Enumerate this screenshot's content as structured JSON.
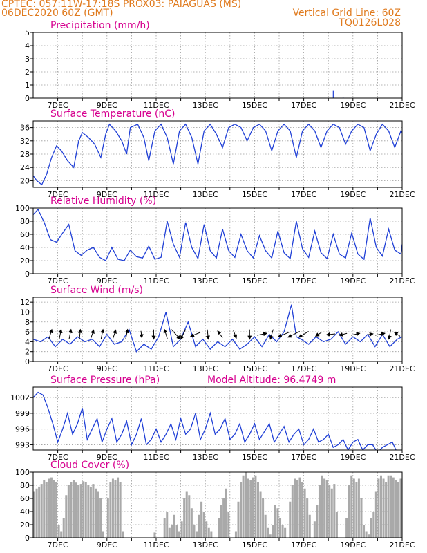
{
  "header": {
    "line1_left": "CPTEC:   057:11W-17:18S   PROX03: PAIAGUAS (MS)",
    "line2_left": "06DEC2020 60Z (GMT)",
    "line2_right": "Vertical Grid Line: 60Z",
    "line3_right": "TQ0126L028"
  },
  "x_ticks": [
    "7DEC",
    "9DEC",
    "11DEC",
    "13DEC",
    "15DEC",
    "17DEC",
    "19DEC",
    "21DEC"
  ],
  "colors": {
    "header": "#e07b1f",
    "title": "#d6008f",
    "line": "#1f3fd6",
    "bar": "#a9a9a9"
  },
  "chart_data": [
    {
      "type": "bar",
      "title": "Precipitation (mm/h)",
      "ylim": [
        0,
        5
      ],
      "yticks": [
        0,
        1,
        2,
        3,
        4,
        5
      ],
      "x_range": [
        6.0,
        21.0
      ],
      "x": [
        18.2,
        18.6
      ],
      "values": [
        0.6,
        0.1
      ]
    },
    {
      "type": "line",
      "title": "Surface Temperature (nC)",
      "ylim": [
        18,
        38
      ],
      "yticks": [
        20,
        24,
        28,
        32,
        36
      ],
      "x_range": [
        6.0,
        21.0
      ],
      "x": [
        6.0,
        6.15,
        6.35,
        6.55,
        6.75,
        6.95,
        7.15,
        7.4,
        7.65,
        7.85,
        8.0,
        8.25,
        8.5,
        8.75,
        8.95,
        9.1,
        9.35,
        9.6,
        9.8,
        9.95,
        10.25,
        10.5,
        10.7,
        10.95,
        11.2,
        11.45,
        11.7,
        11.95,
        12.2,
        12.45,
        12.7,
        12.95,
        13.2,
        13.45,
        13.7,
        13.95,
        14.2,
        14.45,
        14.7,
        14.95,
        15.2,
        15.45,
        15.7,
        15.95,
        16.2,
        16.45,
        16.7,
        16.95,
        17.2,
        17.45,
        17.7,
        17.95,
        18.2,
        18.45,
        18.7,
        18.95,
        19.2,
        19.45,
        19.7,
        19.95,
        20.2,
        20.45,
        20.7,
        20.95,
        21.0
      ],
      "values": [
        21.5,
        20,
        18.8,
        22,
        27,
        30.5,
        29,
        26,
        24,
        32,
        34.5,
        33,
        31,
        27,
        34,
        37,
        35,
        32,
        28,
        36,
        37,
        33,
        26,
        35,
        37,
        33,
        25,
        35,
        37,
        33,
        25,
        35,
        37,
        34,
        30,
        36,
        37,
        36,
        32,
        36,
        37,
        35,
        29,
        35,
        37,
        35,
        27,
        35,
        37,
        35,
        30,
        35,
        37,
        36,
        31,
        35,
        37,
        36,
        29,
        34,
        37,
        35,
        30,
        35,
        34.5
      ]
    },
    {
      "type": "line",
      "title": "Relative Humidity (%)",
      "ylim": [
        0,
        100
      ],
      "yticks": [
        0,
        20,
        40,
        60,
        80,
        100
      ],
      "x_range": [
        6.0,
        21.0
      ],
      "x": [
        6.0,
        6.2,
        6.45,
        6.7,
        6.95,
        7.2,
        7.45,
        7.7,
        7.95,
        8.2,
        8.45,
        8.7,
        8.95,
        9.2,
        9.45,
        9.7,
        9.95,
        10.2,
        10.45,
        10.7,
        10.95,
        11.2,
        11.45,
        11.7,
        11.95,
        12.2,
        12.45,
        12.7,
        12.95,
        13.2,
        13.45,
        13.7,
        13.95,
        14.2,
        14.45,
        14.7,
        14.95,
        15.2,
        15.45,
        15.7,
        15.95,
        16.2,
        16.45,
        16.7,
        16.95,
        17.2,
        17.45,
        17.7,
        17.95,
        18.2,
        18.45,
        18.7,
        18.95,
        19.2,
        19.45,
        19.7,
        19.95,
        20.2,
        20.45,
        20.7,
        20.95,
        21.0
      ],
      "values": [
        90,
        98,
        78,
        52,
        48,
        62,
        75,
        35,
        28,
        36,
        40,
        25,
        20,
        40,
        22,
        20,
        36,
        26,
        24,
        42,
        22,
        25,
        80,
        45,
        25,
        78,
        40,
        23,
        75,
        35,
        24,
        68,
        35,
        25,
        60,
        35,
        24,
        58,
        35,
        24,
        65,
        32,
        23,
        80,
        38,
        25,
        65,
        32,
        23,
        60,
        30,
        24,
        62,
        30,
        22,
        85,
        40,
        27,
        68,
        36,
        30,
        45
      ]
    },
    {
      "type": "line",
      "title": "Surface Wind (m/s)",
      "ylim": [
        0,
        13
      ],
      "yticks": [
        0,
        2,
        4,
        6,
        8,
        10,
        12
      ],
      "x_range": [
        6.0,
        21.0
      ],
      "x": [
        6.0,
        6.3,
        6.6,
        6.9,
        7.2,
        7.5,
        7.8,
        8.1,
        8.4,
        8.7,
        9.0,
        9.3,
        9.6,
        9.9,
        10.2,
        10.5,
        10.8,
        11.1,
        11.4,
        11.7,
        12.0,
        12.3,
        12.6,
        12.9,
        13.2,
        13.5,
        13.8,
        14.1,
        14.4,
        14.7,
        15.0,
        15.3,
        15.6,
        15.9,
        16.2,
        16.5,
        16.7,
        16.9,
        17.2,
        17.5,
        17.8,
        18.1,
        18.4,
        18.7,
        19.0,
        19.3,
        19.6,
        19.9,
        20.2,
        20.5,
        20.8,
        21.0
      ],
      "values": [
        4.5,
        4,
        5,
        3,
        4.5,
        3.5,
        5,
        4,
        4.5,
        3,
        5.5,
        3.5,
        4,
        6.5,
        2,
        3.5,
        2.5,
        5,
        10,
        3,
        4.5,
        8,
        3,
        4.5,
        2.5,
        4,
        3,
        4.5,
        2.5,
        3.5,
        5,
        3,
        5.5,
        4,
        6,
        11.5,
        5,
        4.5,
        3.5,
        5,
        4,
        4.5,
        6,
        3.5,
        5,
        4,
        5.5,
        3,
        5.5,
        3,
        4.5,
        5
      ],
      "arrows": [
        {
          "x": 6.7,
          "u": 0.3,
          "v": 1.0
        },
        {
          "x": 7.1,
          "u": 0.2,
          "v": 1.0
        },
        {
          "x": 7.5,
          "u": 0.2,
          "v": 1.0
        },
        {
          "x": 7.9,
          "u": 0.1,
          "v": 1.0
        },
        {
          "x": 8.4,
          "u": 0.3,
          "v": 0.9
        },
        {
          "x": 8.8,
          "u": 0.2,
          "v": 1.0
        },
        {
          "x": 9.3,
          "u": 0.3,
          "v": 0.9
        },
        {
          "x": 9.8,
          "u": 0.2,
          "v": 1.0
        },
        {
          "x": 10.4,
          "u": 0.1,
          "v": -0.7
        },
        {
          "x": 10.9,
          "u": 0.0,
          "v": -1.0
        },
        {
          "x": 11.4,
          "u": -0.3,
          "v": 1.0
        },
        {
          "x": 11.8,
          "u": 0.9,
          "v": -1.0
        },
        {
          "x": 12.1,
          "u": -0.5,
          "v": -1.0
        },
        {
          "x": 12.6,
          "u": -1.0,
          "v": -0.4
        },
        {
          "x": 13.1,
          "u": 0.1,
          "v": -1.0
        },
        {
          "x": 13.6,
          "u": -0.5,
          "v": 0.7
        },
        {
          "x": 14.2,
          "u": 0.3,
          "v": -0.8
        },
        {
          "x": 14.8,
          "u": 0.0,
          "v": -1.0
        },
        {
          "x": 15.3,
          "u": 1.0,
          "v": 0.2
        },
        {
          "x": 15.7,
          "u": -0.3,
          "v": -1.0
        },
        {
          "x": 16.2,
          "u": -1.2,
          "v": -0.5
        },
        {
          "x": 16.6,
          "u": -1.2,
          "v": -0.6
        },
        {
          "x": 17.0,
          "u": -1.0,
          "v": -0.6
        },
        {
          "x": 17.6,
          "u": -0.6,
          "v": -0.4
        },
        {
          "x": 18.1,
          "u": -0.9,
          "v": -0.1
        },
        {
          "x": 18.6,
          "u": -0.8,
          "v": -0.2
        },
        {
          "x": 19.1,
          "u": 0.9,
          "v": 0.2
        },
        {
          "x": 19.7,
          "u": 0.6,
          "v": 0.1
        },
        {
          "x": 20.1,
          "u": 1.0,
          "v": 0.2
        },
        {
          "x": 20.5,
          "u": -0.2,
          "v": -1.0
        },
        {
          "x": 20.8,
          "u": -0.6,
          "v": 0.4
        }
      ]
    },
    {
      "type": "line",
      "title": "Surface Pressure (hPa)",
      "annotation": "Model Altitude: 96.4749 m",
      "ylim": [
        992,
        1004
      ],
      "yticks": [
        993,
        996,
        999,
        1002
      ],
      "x_range": [
        6.0,
        21.0
      ],
      "x": [
        6.0,
        6.2,
        6.4,
        6.6,
        6.8,
        7.0,
        7.2,
        7.4,
        7.6,
        7.8,
        8.0,
        8.2,
        8.4,
        8.6,
        8.8,
        9.0,
        9.2,
        9.4,
        9.6,
        9.8,
        10.0,
        10.2,
        10.4,
        10.6,
        10.8,
        11.0,
        11.2,
        11.4,
        11.6,
        11.8,
        12.0,
        12.2,
        12.4,
        12.6,
        12.8,
        13.0,
        13.2,
        13.4,
        13.6,
        13.8,
        14.0,
        14.2,
        14.4,
        14.6,
        14.8,
        15.0,
        15.2,
        15.4,
        15.6,
        15.8,
        16.0,
        16.2,
        16.4,
        16.6,
        16.8,
        17.0,
        17.2,
        17.4,
        17.6,
        17.8,
        18.0,
        18.2,
        18.4,
        18.6,
        18.8,
        19.0,
        19.2,
        19.4,
        19.6,
        19.8,
        20.0,
        20.2,
        20.4,
        20.6,
        20.8,
        21.0
      ],
      "values": [
        1002,
        1003,
        1002.5,
        1000,
        997,
        993.5,
        996,
        999,
        995,
        997,
        1000,
        994,
        996,
        998,
        993.5,
        996,
        998,
        993.5,
        995,
        997.5,
        993,
        995,
        998,
        993,
        994,
        996,
        993.5,
        995,
        997,
        994,
        998,
        995,
        996,
        999,
        994,
        996,
        999,
        995,
        996,
        998,
        994,
        995,
        997,
        993.5,
        995,
        997,
        994,
        995.5,
        997,
        993.5,
        995,
        996.5,
        993.5,
        995,
        996,
        993,
        994,
        996,
        993.5,
        994,
        995,
        992.5,
        993,
        994,
        992,
        993.5,
        994,
        992,
        993,
        993,
        991.5,
        992.5,
        993,
        993.5,
        991.5,
        991.5
      ]
    },
    {
      "type": "bar",
      "title": "Cloud Cover (%)",
      "ylim": [
        0,
        100
      ],
      "yticks": [
        0,
        20,
        40,
        60,
        80,
        100
      ],
      "x_range": [
        6.0,
        21.0
      ],
      "color": "#a9a9a9",
      "x": [
        6.0,
        6.1,
        6.2,
        6.3,
        6.4,
        6.5,
        6.6,
        6.7,
        6.8,
        6.9,
        7.0,
        7.1,
        7.2,
        7.3,
        7.4,
        7.5,
        7.6,
        7.7,
        7.8,
        7.9,
        8.0,
        8.1,
        8.2,
        8.3,
        8.4,
        8.5,
        8.6,
        8.7,
        8.8,
        8.9,
        9.0,
        9.1,
        9.2,
        9.3,
        9.4,
        9.5,
        9.6,
        9.7,
        9.8,
        9.9,
        10.0,
        10.1,
        10.2,
        10.3,
        10.4,
        10.5,
        10.6,
        10.7,
        10.8,
        10.9,
        11.0,
        11.1,
        11.2,
        11.3,
        11.4,
        11.5,
        11.6,
        11.7,
        11.8,
        11.9,
        12.0,
        12.1,
        12.2,
        12.3,
        12.4,
        12.5,
        12.6,
        12.7,
        12.8,
        12.9,
        13.0,
        13.1,
        13.2,
        13.3,
        13.4,
        13.5,
        13.6,
        13.7,
        13.8,
        13.9,
        14.0,
        14.1,
        14.2,
        14.3,
        14.4,
        14.5,
        14.6,
        14.7,
        14.8,
        14.9,
        15.0,
        15.1,
        15.2,
        15.3,
        15.4,
        15.5,
        15.6,
        15.7,
        15.8,
        15.9,
        16.0,
        16.1,
        16.2,
        16.3,
        16.4,
        16.5,
        16.6,
        16.7,
        16.8,
        16.9,
        17.0,
        17.1,
        17.2,
        17.3,
        17.4,
        17.5,
        17.6,
        17.7,
        17.8,
        17.9,
        18.0,
        18.1,
        18.2,
        18.3,
        18.4,
        18.5,
        18.6,
        18.7,
        18.8,
        18.9,
        19.0,
        19.1,
        19.2,
        19.3,
        19.4,
        19.5,
        19.6,
        19.7,
        19.8,
        19.9,
        20.0,
        20.1,
        20.2,
        20.3,
        20.4,
        20.5,
        20.6,
        20.7,
        20.8,
        20.9
      ],
      "values": [
        70,
        75,
        78,
        82,
        88,
        85,
        90,
        92,
        88,
        85,
        20,
        10,
        30,
        65,
        80,
        85,
        88,
        84,
        80,
        82,
        86,
        85,
        80,
        78,
        82,
        75,
        70,
        60,
        10,
        0,
        60,
        85,
        90,
        88,
        92,
        85,
        10,
        0,
        0,
        0,
        0,
        0,
        0,
        0,
        0,
        0,
        0,
        0,
        0,
        8,
        0,
        0,
        0,
        30,
        40,
        15,
        20,
        35,
        20,
        10,
        25,
        60,
        70,
        65,
        45,
        20,
        10,
        35,
        55,
        40,
        25,
        15,
        10,
        0,
        0,
        30,
        50,
        60,
        75,
        40,
        0,
        0,
        10,
        55,
        85,
        95,
        100,
        90,
        88,
        92,
        95,
        85,
        70,
        60,
        35,
        15,
        5,
        20,
        50,
        45,
        30,
        20,
        15,
        0,
        55,
        80,
        90,
        88,
        92,
        85,
        75,
        60,
        35,
        0,
        25,
        50,
        80,
        95,
        90,
        88,
        80,
        75,
        82,
        40,
        0,
        0,
        0,
        30,
        80,
        95,
        90,
        85,
        90,
        60,
        20,
        10,
        5,
        30,
        40,
        70,
        90,
        95,
        90,
        85,
        95,
        95,
        92,
        88,
        85,
        90
      ]
    }
  ]
}
